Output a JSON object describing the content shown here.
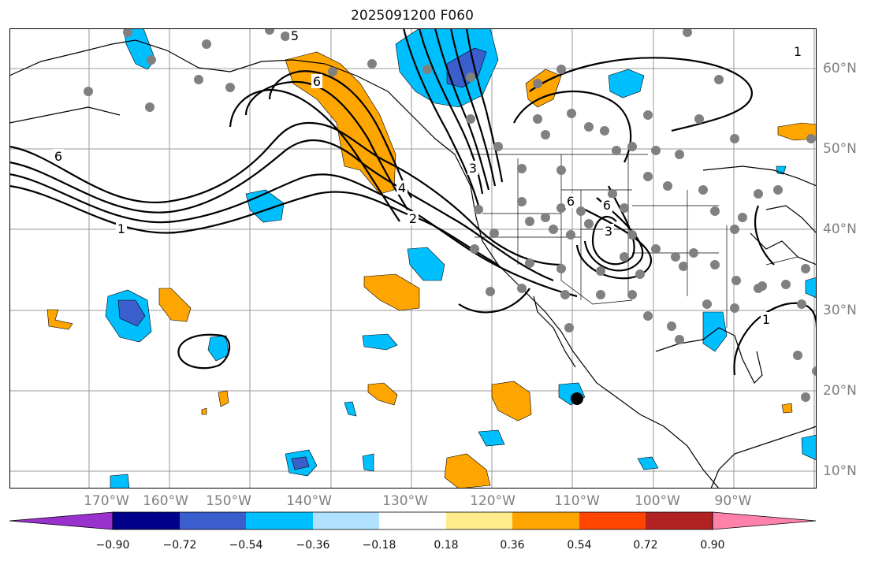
{
  "title": "2025091200 F060",
  "lon_labels": [
    "170°W",
    "160°W",
    "150°W",
    "140°W",
    "130°W",
    "120°W",
    "110°W",
    "100°W",
    "90°W"
  ],
  "lat_labels": [
    "60°N",
    "50°N",
    "40°N",
    "30°N",
    "20°N",
    "10°N"
  ],
  "contour_labels": [
    "5",
    "6",
    "6",
    "4",
    "2",
    "1",
    "3",
    "6",
    "3",
    "6",
    "1",
    "1"
  ],
  "colorbar": {
    "ticks": [
      "−0.90",
      "−0.72",
      "−0.54",
      "−0.36",
      "−0.18",
      "0.18",
      "0.36",
      "0.54",
      "0.72",
      "0.90"
    ],
    "colors": [
      "#9932cc",
      "#00008b",
      "#3a5fcd",
      "#00bfff",
      "#b0e2ff",
      "#ffffff",
      "#ffec8b",
      "#ffa500",
      "#ff4500",
      "#b22222",
      "#ff82ab"
    ]
  },
  "colors": {
    "orange": "#ffa500",
    "cyan": "#00bfff",
    "royal": "#3a5fcd",
    "station": "#808080"
  }
}
